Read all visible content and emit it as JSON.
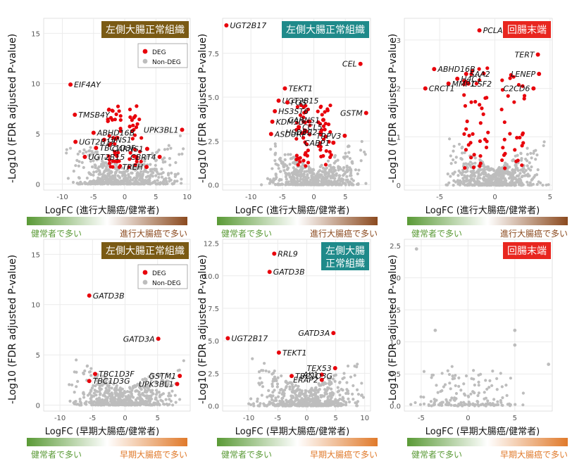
{
  "colors": {
    "deg": "#e8000b",
    "non_deg": "#bdbdbd",
    "left_colon_badge": "#7a5a14",
    "teal_badge": "#1f8a8a",
    "ileum_badge": "#e8261f",
    "green": "#5a9a36",
    "brown": "#8b4a1f",
    "orange": "#e07a2b",
    "grid": "#ebebeb"
  },
  "ylabel": "-Log10 (FDR adjusted P-value)",
  "chart_data": [
    {
      "type": "scatter",
      "id": "p1",
      "tag": "左側大腸正常組織",
      "xlabel": "LogFC (進行大腸癌/健常者)",
      "xlim": [
        -13,
        10.5
      ],
      "ylim": [
        -0.6,
        16.5
      ],
      "xticks": [
        -10,
        -5,
        0,
        5,
        10
      ],
      "yticks": [
        0,
        5,
        10,
        15
      ],
      "legend": {
        "deg": "DEG",
        "non_deg": "Non-DEG"
      },
      "left_group": "健常者で多い",
      "right_group": "進行大腸癌で多い",
      "points": [
        {
          "x": -8.7,
          "y": 9.9,
          "label": "EIF4AY"
        },
        {
          "x": -8.0,
          "y": 6.9,
          "label": "TMSB4Y"
        },
        {
          "x": -5.0,
          "y": 5.1,
          "label": "ABHD16B"
        },
        {
          "x": -3.3,
          "y": 4.4,
          "label": "GINS1"
        },
        {
          "x": -7.9,
          "y": 4.2,
          "label": "UGT2B17"
        },
        {
          "x": -4.6,
          "y": 3.6,
          "label": "TBC1D3F"
        },
        {
          "x": -6.4,
          "y": 2.7,
          "label": "UGT2B15"
        },
        {
          "x": 9.2,
          "y": 5.4,
          "label": "UPK3BL1"
        },
        {
          "x": 3.6,
          "y": 3.5,
          "label": "CARNS1"
        },
        {
          "x": 5.6,
          "y": 2.7,
          "label": "CBRT4"
        },
        {
          "x": 3.5,
          "y": 1.7,
          "label": "TREH"
        }
      ]
    },
    {
      "type": "scatter",
      "id": "p2",
      "tag": "左側大腸正常組織",
      "xlabel": "LogFC (進行大腸癌/健常者)",
      "xlim": [
        -14.5,
        9
      ],
      "ylim": [
        -0.3,
        9.5
      ],
      "xticks": [
        -10,
        -5,
        0,
        5
      ],
      "yticks": [
        0.0,
        2.5,
        5.0,
        7.5
      ],
      "left_group": "健常者で多い",
      "right_group": "進行大腸癌で多い",
      "points": [
        {
          "x": -13.9,
          "y": 9.1,
          "label": "UGT2B17"
        },
        {
          "x": 7.4,
          "y": 6.9,
          "label": "CEL"
        },
        {
          "x": -4.6,
          "y": 5.5,
          "label": "TEKT1"
        },
        {
          "x": -5.6,
          "y": 4.8,
          "label": "UGT2B15"
        },
        {
          "x": -4.2,
          "y": 4.7,
          "label": "FOS"
        },
        {
          "x": -6.2,
          "y": 4.2,
          "label": "HS3ST6"
        },
        {
          "x": -6.6,
          "y": 3.6,
          "label": "KDM5D"
        },
        {
          "x": -2.4,
          "y": 3.3,
          "label": "CCL5"
        },
        {
          "x": -6.8,
          "y": 2.9,
          "label": "ASDURF"
        },
        {
          "x": 8.3,
          "y": 4.1,
          "label": "GSTM"
        },
        {
          "x": 1.5,
          "y": 3.7,
          "label": "CARNS1"
        },
        {
          "x": 1.1,
          "y": 3.0,
          "label": "HSD3B2"
        },
        {
          "x": 4.9,
          "y": 2.8,
          "label": "TRPV3"
        },
        {
          "x": 3.1,
          "y": 2.4,
          "label": "CABP1"
        }
      ]
    },
    {
      "type": "scatter",
      "id": "p3",
      "tag": "回腸末端",
      "xlabel": "LogFC (進行大腸癌/健常者)",
      "xlim": [
        -8.2,
        5.2
      ],
      "ylim": [
        -0.1,
        3.45
      ],
      "xticks": [
        -5,
        0,
        5
      ],
      "yticks": [
        0,
        1,
        2,
        3
      ],
      "left_group": "健常者で多い",
      "right_group": "進行大腸癌で多い",
      "points": [
        {
          "x": -1.4,
          "y": 3.2,
          "label": "PCLAF"
        },
        {
          "x": 3.9,
          "y": 2.7,
          "label": "TERT"
        },
        {
          "x": -5.5,
          "y": 2.4,
          "label": "ABHD16B"
        },
        {
          "x": -2.6,
          "y": 2.3,
          "label": "SAA2"
        },
        {
          "x": -3.4,
          "y": 2.2,
          "label": "H4C1"
        },
        {
          "x": 4.0,
          "y": 2.3,
          "label": "LENEP"
        },
        {
          "x": -2.4,
          "y": 2.1,
          "label": "CSF2"
        },
        {
          "x": -4.2,
          "y": 2.1,
          "label": "MMP1"
        },
        {
          "x": -6.3,
          "y": 2.0,
          "label": "CRCT1"
        },
        {
          "x": 3.5,
          "y": 2.0,
          "label": "C2CD6"
        }
      ]
    },
    {
      "type": "scatter",
      "id": "p4",
      "tag": "左側大腸正常組織",
      "xlabel": "LogFC (早期大腸癌/健常者)",
      "xlim": [
        -12.5,
        10
      ],
      "ylim": [
        -0.6,
        16.5
      ],
      "xticks": [
        -10,
        -5,
        0,
        5
      ],
      "yticks": [
        0,
        5,
        10,
        15
      ],
      "legend": {
        "deg": "DEG",
        "non_deg": "Non-DEG"
      },
      "left_group": "健常者で多い",
      "right_group": "早期大腸癌で多い",
      "points": [
        {
          "x": -5.5,
          "y": 10.9,
          "label": "GATD3B"
        },
        {
          "x": 5.1,
          "y": 6.6,
          "label": "GATD3A"
        },
        {
          "x": 8.4,
          "y": 2.9,
          "label": "GSTM1"
        },
        {
          "x": -4.6,
          "y": 3.1,
          "label": "TBC1D3F"
        },
        {
          "x": -5.5,
          "y": 2.4,
          "label": "TBC1D3G"
        },
        {
          "x": 8.0,
          "y": 2.1,
          "label": "UPK3BL1"
        }
      ]
    },
    {
      "type": "scatter",
      "id": "p5",
      "tag": "左側大腸正常組織",
      "xlabel": "LogFC (早期大腸癌/健常者)",
      "xlim": [
        -14.5,
        11
      ],
      "ylim": [
        -0.4,
        12.8
      ],
      "xticks": [
        -10,
        -5,
        0,
        5,
        10
      ],
      "yticks": [
        0.0,
        2.5,
        5.0,
        7.5,
        10.0,
        12.5
      ],
      "left_group": "健常者で多い",
      "right_group": "早期大腸癌で多い",
      "points": [
        {
          "x": -5.6,
          "y": 11.7,
          "label": "RRL9"
        },
        {
          "x": -6.4,
          "y": 10.3,
          "label": "GATD3B"
        },
        {
          "x": -13.6,
          "y": 5.2,
          "label": "UGT2B17"
        },
        {
          "x": 4.6,
          "y": 5.6,
          "label": "GATD3A"
        },
        {
          "x": -4.8,
          "y": 4.1,
          "label": "TEKT1"
        },
        {
          "x": 4.9,
          "y": 2.9,
          "label": "TEX53"
        },
        {
          "x": 2.6,
          "y": 2.4,
          "label": "AK1"
        },
        {
          "x": -2.6,
          "y": 2.3,
          "label": "TBC1D3G"
        },
        {
          "x": 2.6,
          "y": 2.0,
          "label": "ERAP2"
        }
      ]
    },
    {
      "type": "scatter",
      "id": "p6",
      "tag": "回腸末端",
      "xlabel": "LogFC (早期大腸癌/健常者)",
      "xlim": [
        -6.8,
        9
      ],
      "ylim": [
        -0.08,
        2.6
      ],
      "xticks": [
        -5,
        0,
        5
      ],
      "yticks": [
        0.0,
        0.5,
        1.0,
        1.5,
        2.0,
        2.5
      ],
      "left_group": "健常者で多い",
      "right_group": "早期大腸癌で多い",
      "points": [
        {
          "x": -5.5,
          "y": 2.45
        },
        {
          "x": -3.5,
          "y": 1.18
        },
        {
          "x": 5.0,
          "y": 1.18
        },
        {
          "x": 5.0,
          "y": 0.95
        },
        {
          "x": 8.6,
          "y": 0.65
        }
      ]
    }
  ]
}
